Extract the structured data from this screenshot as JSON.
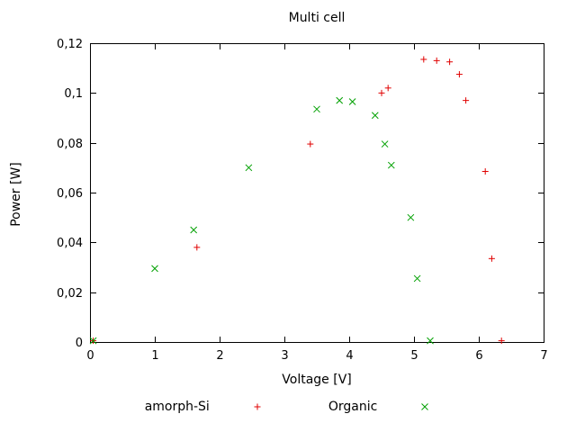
{
  "chart_data": {
    "type": "scatter",
    "title": "Multi cell",
    "xlabel": "Voltage [V]",
    "ylabel": "Power [W]",
    "xlim": [
      0,
      7
    ],
    "ylim": [
      0,
      0.12
    ],
    "grid": false,
    "legend_position": "bottom-center",
    "frame_color": "#000000",
    "background_color": "#ffffff",
    "xticks": {
      "values": [
        0,
        1,
        2,
        3,
        4,
        5,
        6,
        7
      ],
      "labels": [
        "0",
        "1",
        "2",
        "3",
        "4",
        "5",
        "6",
        "7"
      ]
    },
    "yticks": {
      "values": [
        0,
        0.02,
        0.04,
        0.06,
        0.08,
        0.1,
        0.12
      ],
      "labels": [
        "0",
        "0,02",
        "0,04",
        "0,06",
        "0,08",
        "0,1",
        "0,12"
      ]
    },
    "series": [
      {
        "name": "amorph-Si",
        "marker": "plus",
        "color": "#e00000",
        "points": [
          [
            0.05,
            0.0005
          ],
          [
            1.65,
            0.038
          ],
          [
            3.4,
            0.0795
          ],
          [
            4.5,
            0.1
          ],
          [
            4.6,
            0.102
          ],
          [
            5.15,
            0.1135
          ],
          [
            5.35,
            0.113
          ],
          [
            5.55,
            0.1125
          ],
          [
            5.7,
            0.1075
          ],
          [
            5.8,
            0.097
          ],
          [
            6.1,
            0.0685
          ],
          [
            6.2,
            0.0335
          ],
          [
            6.35,
            0.0005
          ]
        ]
      },
      {
        "name": "Organic",
        "marker": "cross",
        "color": "#00a000",
        "points": [
          [
            0.05,
            0.0005
          ],
          [
            1.0,
            0.0295
          ],
          [
            1.6,
            0.045
          ],
          [
            2.45,
            0.07
          ],
          [
            3.5,
            0.0935
          ],
          [
            3.85,
            0.097
          ],
          [
            4.05,
            0.0965
          ],
          [
            4.4,
            0.091
          ],
          [
            4.55,
            0.0795
          ],
          [
            4.65,
            0.071
          ],
          [
            4.95,
            0.05
          ],
          [
            5.05,
            0.0255
          ],
          [
            5.25,
            0.0005
          ]
        ]
      }
    ]
  }
}
